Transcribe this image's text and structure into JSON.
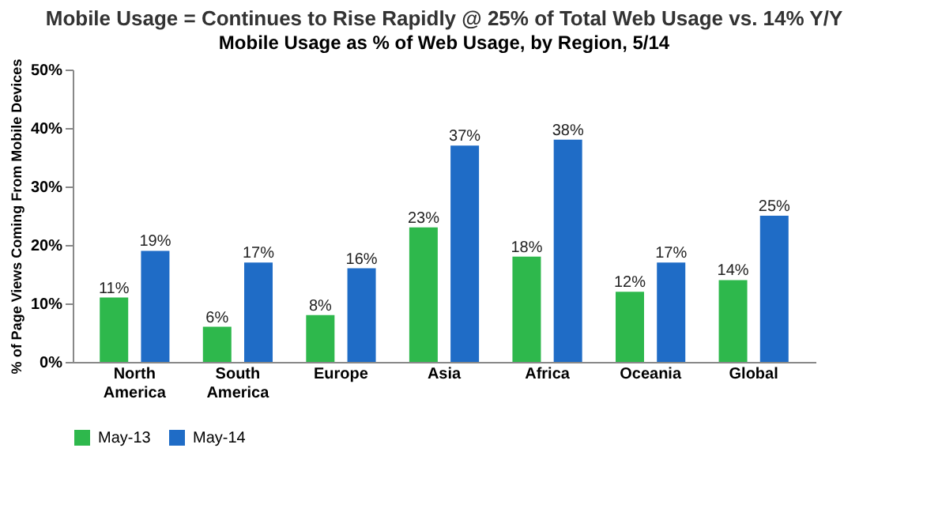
{
  "chart_data": {
    "type": "bar",
    "title": "Mobile Usage = Continues to Rise Rapidly @ 25% of Total Web Usage vs. 14% Y/Y",
    "subtitle": "Mobile Usage as % of Web Usage, by Region, 5/14",
    "ylabel": "% of Page Views Coming From Mobile Devices",
    "categories": [
      "North America",
      "South America",
      "Europe",
      "Asia",
      "Africa",
      "Oceania",
      "Global"
    ],
    "series": [
      {
        "name": "May-13",
        "color": "#2eb84c",
        "values": [
          11,
          6,
          8,
          23,
          18,
          12,
          14
        ],
        "value_labels": [
          "11%",
          "6%",
          "8%",
          "23%",
          "18%",
          "12%",
          "14%"
        ]
      },
      {
        "name": "May-14",
        "color": "#1f6cc6",
        "values": [
          19,
          17,
          16,
          37,
          38,
          17,
          25
        ],
        "value_labels": [
          "19%",
          "17%",
          "16%",
          "37%",
          "38%",
          "17%",
          "25%"
        ]
      }
    ],
    "ylim": [
      0,
      50
    ],
    "yticks": [
      {
        "value": 0,
        "label": "0%"
      },
      {
        "value": 10,
        "label": "10%"
      },
      {
        "value": 20,
        "label": "20%"
      },
      {
        "value": 30,
        "label": "30%"
      },
      {
        "value": 40,
        "label": "40%"
      },
      {
        "value": 50,
        "label": "50%"
      }
    ],
    "grid": false,
    "legend": "bottom"
  }
}
